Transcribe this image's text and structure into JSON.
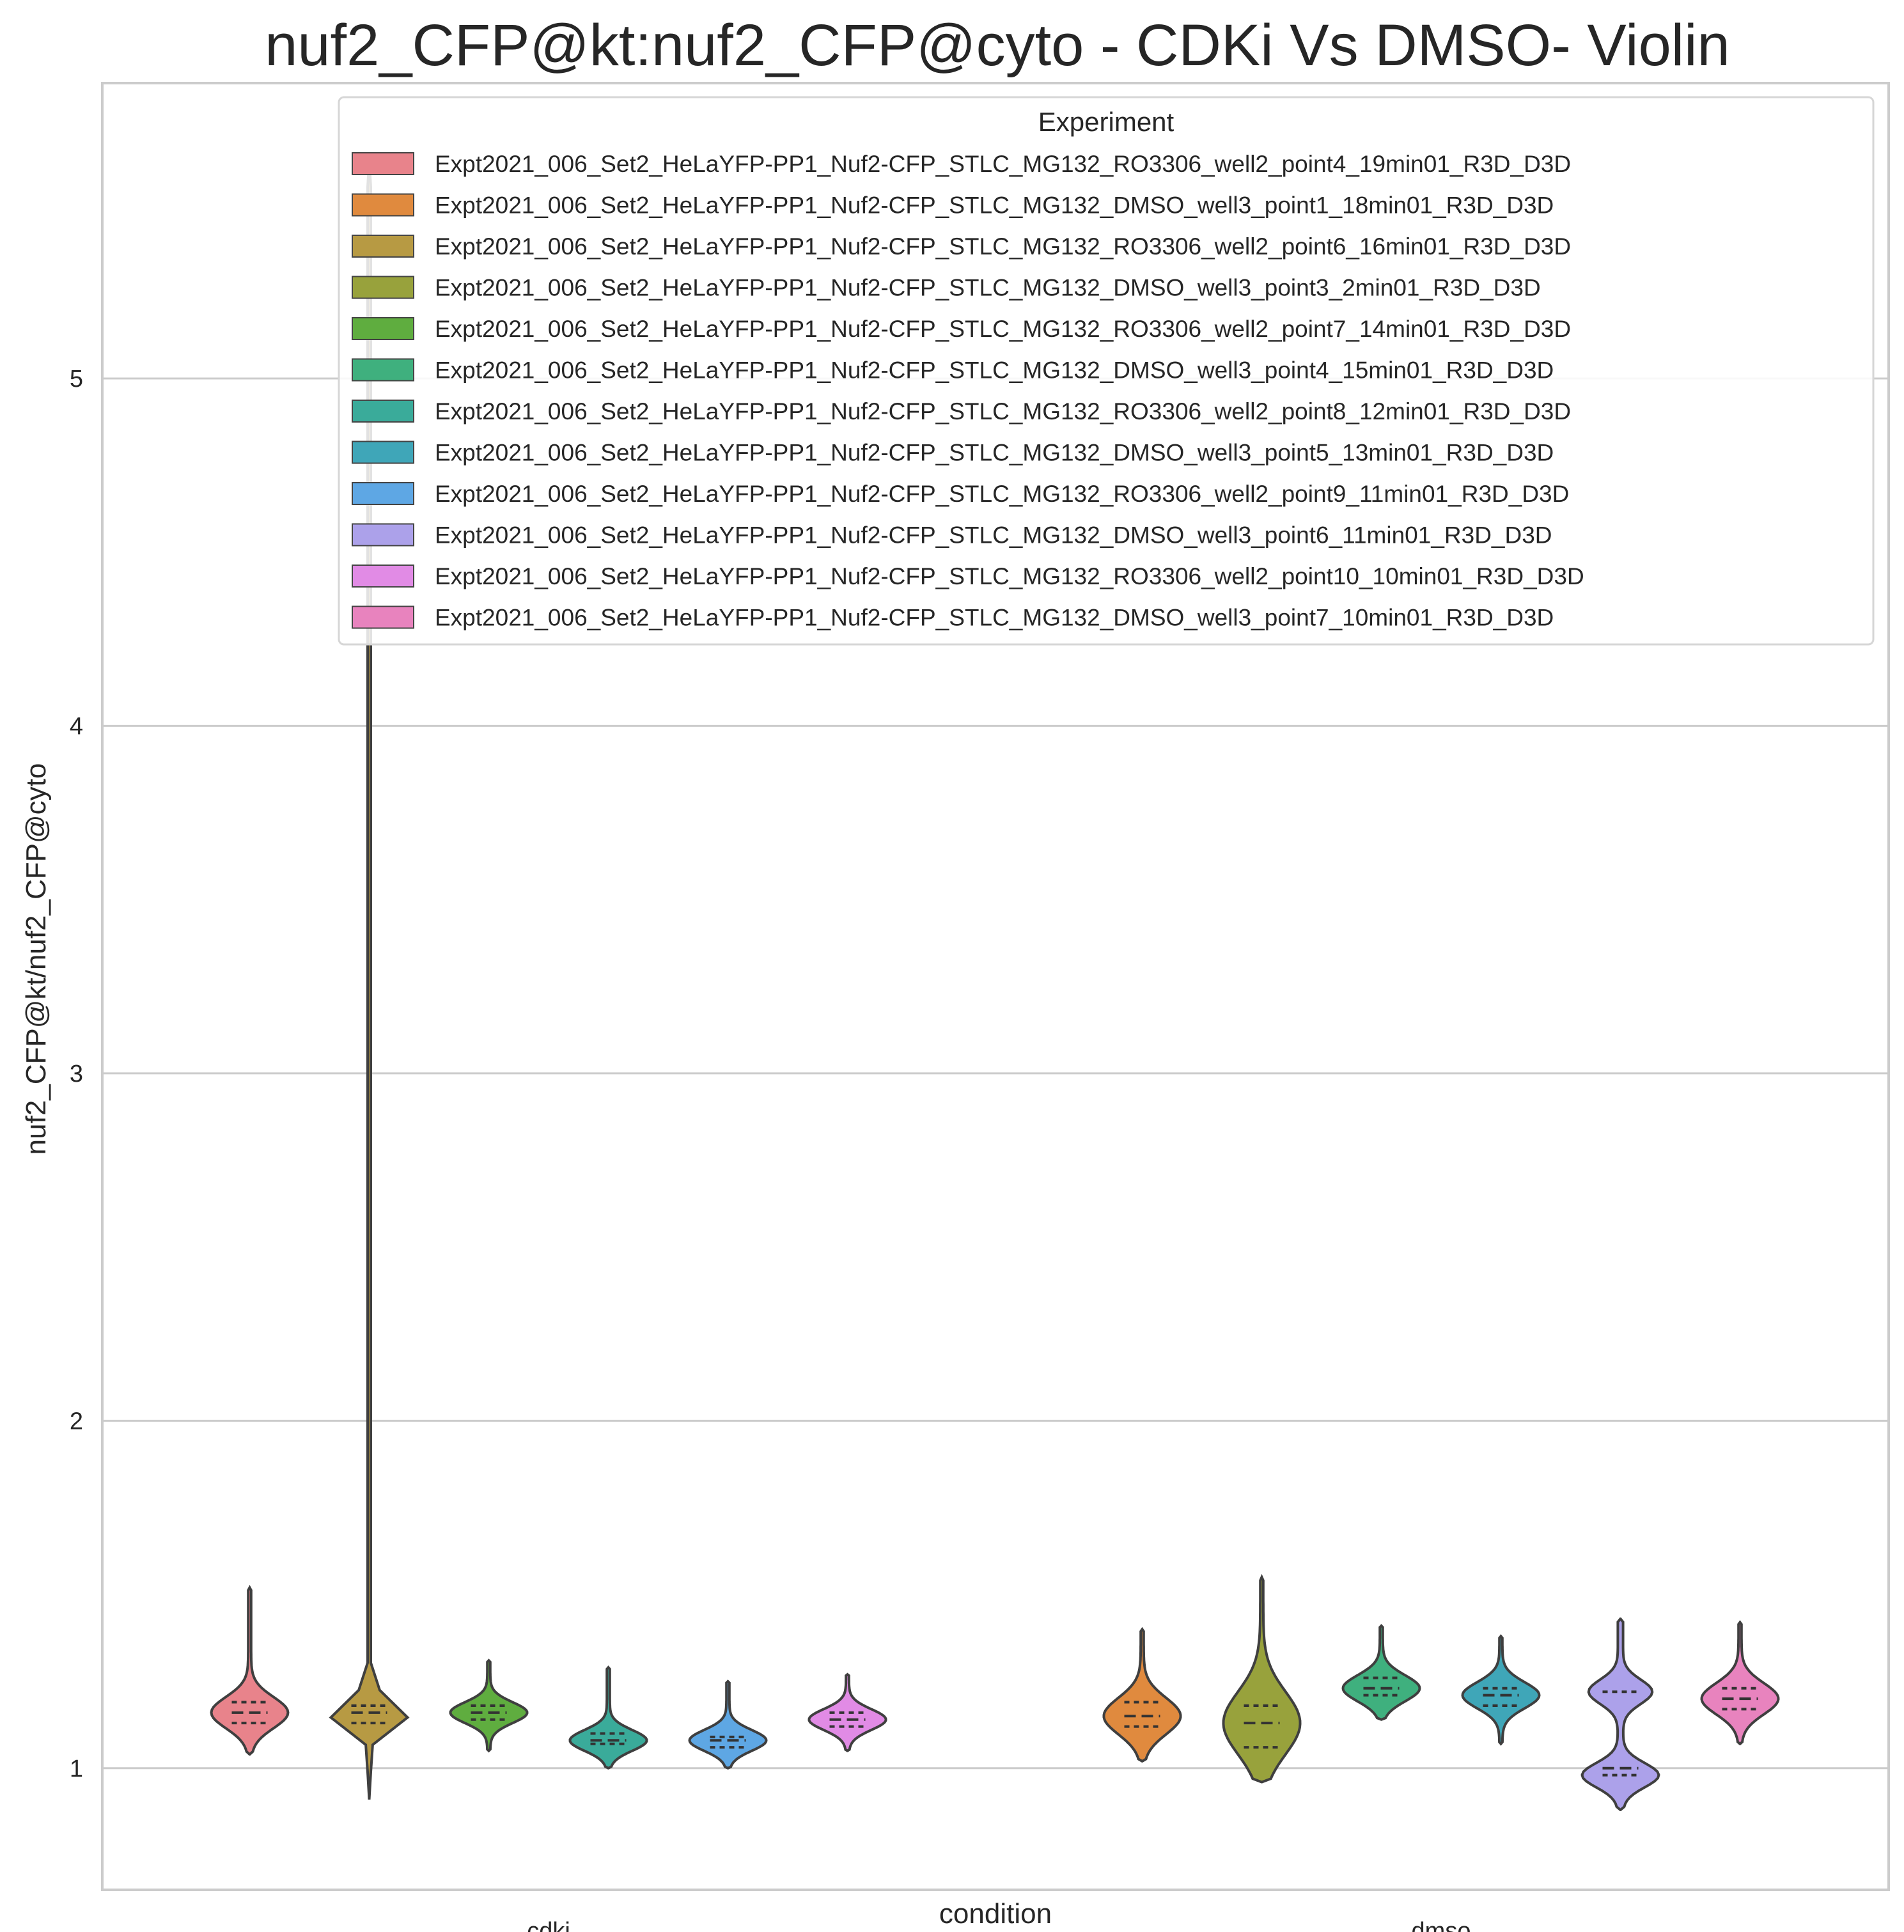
{
  "chart_data": {
    "type": "violin",
    "title": "nuf2_CFP@kt:nuf2_CFP@cyto - CDKi Vs DMSO- Violin",
    "xlabel": "condition",
    "ylabel": "nuf2_CFP@kt/nuf2_CFP@cyto",
    "categories": [
      "cdki",
      "dmso"
    ],
    "ylim": [
      0.65,
      5.85
    ],
    "yticks": [
      1,
      2,
      3,
      4,
      5
    ],
    "grid": "horizontal",
    "legend": {
      "title": "Experiment",
      "placement": "top-right"
    },
    "series": [
      {
        "name": "Expt2021_006_Set2_HeLaYFP-PP1_Nuf2-CFP_STLC_MG132_RO3306_well2_point4_19min01_R3D_D3D",
        "color": "#E8838B",
        "category": "cdki",
        "min": 1.04,
        "max": 1.52,
        "q1": 1.13,
        "median": 1.16,
        "q3": 1.19
      },
      {
        "name": "Expt2021_006_Set2_HeLaYFP-PP1_Nuf2-CFP_STLC_MG132_DMSO_well3_point1_18min01_R3D_D3D",
        "color": "#E08A3E",
        "category": "dmso",
        "min": 1.02,
        "max": 1.4,
        "q1": 1.12,
        "median": 1.15,
        "q3": 1.19
      },
      {
        "name": "Expt2021_006_Set2_HeLaYFP-PP1_Nuf2-CFP_STLC_MG132_RO3306_well2_point6_16min01_R3D_D3D",
        "color": "#B79A43",
        "category": "cdki",
        "min": 0.91,
        "max": 5.63,
        "q1": 1.13,
        "median": 1.16,
        "q3": 1.18
      },
      {
        "name": "Expt2021_006_Set2_HeLaYFP-PP1_Nuf2-CFP_STLC_MG132_DMSO_well3_point3_2min01_R3D_D3D",
        "color": "#98A23C",
        "category": "dmso",
        "min": 0.96,
        "max": 1.55,
        "q1": 1.06,
        "median": 1.13,
        "q3": 1.18
      },
      {
        "name": "Expt2021_006_Set2_HeLaYFP-PP1_Nuf2-CFP_STLC_MG132_RO3306_well2_point7_14min01_R3D_D3D",
        "color": "#5FAD3F",
        "category": "cdki",
        "min": 1.05,
        "max": 1.31,
        "q1": 1.14,
        "median": 1.16,
        "q3": 1.18
      },
      {
        "name": "Expt2021_006_Set2_HeLaYFP-PP1_Nuf2-CFP_STLC_MG132_DMSO_well3_point4_15min01_R3D_D3D",
        "color": "#3FB07E",
        "category": "dmso",
        "min": 1.14,
        "max": 1.41,
        "q1": 1.21,
        "median": 1.23,
        "q3": 1.26
      },
      {
        "name": "Expt2021_006_Set2_HeLaYFP-PP1_Nuf2-CFP_STLC_MG132_RO3306_well2_point8_12min01_R3D_D3D",
        "color": "#3AAB9A",
        "category": "cdki",
        "min": 1.0,
        "max": 1.29,
        "q1": 1.07,
        "median": 1.08,
        "q3": 1.1
      },
      {
        "name": "Expt2021_006_Set2_HeLaYFP-PP1_Nuf2-CFP_STLC_MG132_DMSO_well3_point5_13min01_R3D_D3D",
        "color": "#3FA6B8",
        "category": "dmso",
        "min": 1.07,
        "max": 1.38,
        "q1": 1.18,
        "median": 1.21,
        "q3": 1.23
      },
      {
        "name": "Expt2021_006_Set2_HeLaYFP-PP1_Nuf2-CFP_STLC_MG132_RO3306_well2_point9_11min01_R3D_D3D",
        "color": "#5EA7E4",
        "category": "cdki",
        "min": 1.0,
        "max": 1.25,
        "q1": 1.06,
        "median": 1.08,
        "q3": 1.09
      },
      {
        "name": "Expt2021_006_Set2_HeLaYFP-PP1_Nuf2-CFP_STLC_MG132_DMSO_well3_point6_11min01_R3D_D3D",
        "color": "#ACA1EA",
        "category": "dmso",
        "min": 0.88,
        "max": 1.43,
        "q1": 0.98,
        "median": 1.0,
        "q3": 1.22
      },
      {
        "name": "Expt2021_006_Set2_HeLaYFP-PP1_Nuf2-CFP_STLC_MG132_RO3306_well2_point10_10min01_R3D_D3D",
        "color": "#E18BE5",
        "category": "cdki",
        "min": 1.05,
        "max": 1.27,
        "q1": 1.12,
        "median": 1.14,
        "q3": 1.16
      },
      {
        "name": "Expt2021_006_Set2_HeLaYFP-PP1_Nuf2-CFP_STLC_MG132_DMSO_well3_point7_10min01_R3D_D3D",
        "color": "#E883BE",
        "category": "dmso",
        "min": 1.07,
        "max": 1.42,
        "q1": 1.17,
        "median": 1.2,
        "q3": 1.23
      }
    ]
  }
}
